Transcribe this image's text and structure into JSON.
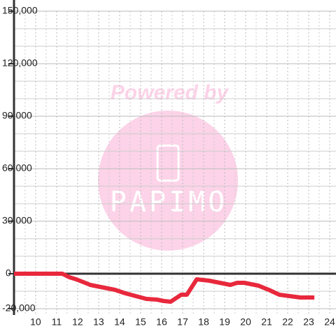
{
  "chart_data": {
    "type": "line",
    "watermark": "Powered by",
    "watermark_logo": "PAPIMO",
    "xlim": [
      8.97,
      24.3
    ],
    "xticks": [
      10,
      11,
      12,
      13,
      14,
      15,
      16,
      17,
      18,
      19,
      20,
      21,
      22,
      23,
      24
    ],
    "xminorticks": [
      9.5,
      10.5,
      11.5,
      12.5,
      13.5,
      14.5,
      15.5,
      16.5,
      17.5,
      18.5,
      19.5,
      20.5,
      21.5,
      22.5,
      23.5
    ],
    "ylim": [
      -20000,
      150000
    ],
    "yticks": [
      {
        "value": -20000,
        "label": "-20,000"
      },
      0,
      {
        "value": 30000,
        "label": "30,000"
      },
      {
        "value": 60000,
        "label": "60,000"
      },
      {
        "value": 90000,
        "label": "90,000"
      },
      {
        "value": 120000,
        "label": "120,000"
      },
      {
        "value": 150000,
        "label": "150,000"
      }
    ],
    "yminorticks": [
      -10000,
      10000,
      20000,
      40000,
      50000,
      70000,
      80000,
      100000,
      110000,
      130000,
      140000
    ],
    "grid": true,
    "x": [
      8.97,
      11.27,
      11.6,
      11.93,
      12.27,
      12.6,
      12.93,
      13.27,
      13.77,
      14.27,
      14.77,
      15.27,
      15.77,
      16.1,
      16.43,
      16.93,
      17.2,
      17.67,
      18.27,
      18.77,
      19.27,
      19.6,
      19.93,
      20.6,
      21.1,
      21.6,
      22.1,
      22.6,
      23.27
    ],
    "series": [
      {
        "color": "#e8283c",
        "values": [
          0,
          0,
          -2000,
          -3200,
          -4800,
          -6400,
          -7200,
          -8000,
          -9200,
          -11200,
          -12800,
          -14400,
          -14800,
          -15600,
          -16000,
          -12000,
          -12000,
          -3200,
          -4000,
          -5200,
          -6400,
          -5200,
          -5200,
          -6800,
          -9200,
          -12000,
          -12800,
          -13600,
          -13600
        ]
      }
    ]
  }
}
